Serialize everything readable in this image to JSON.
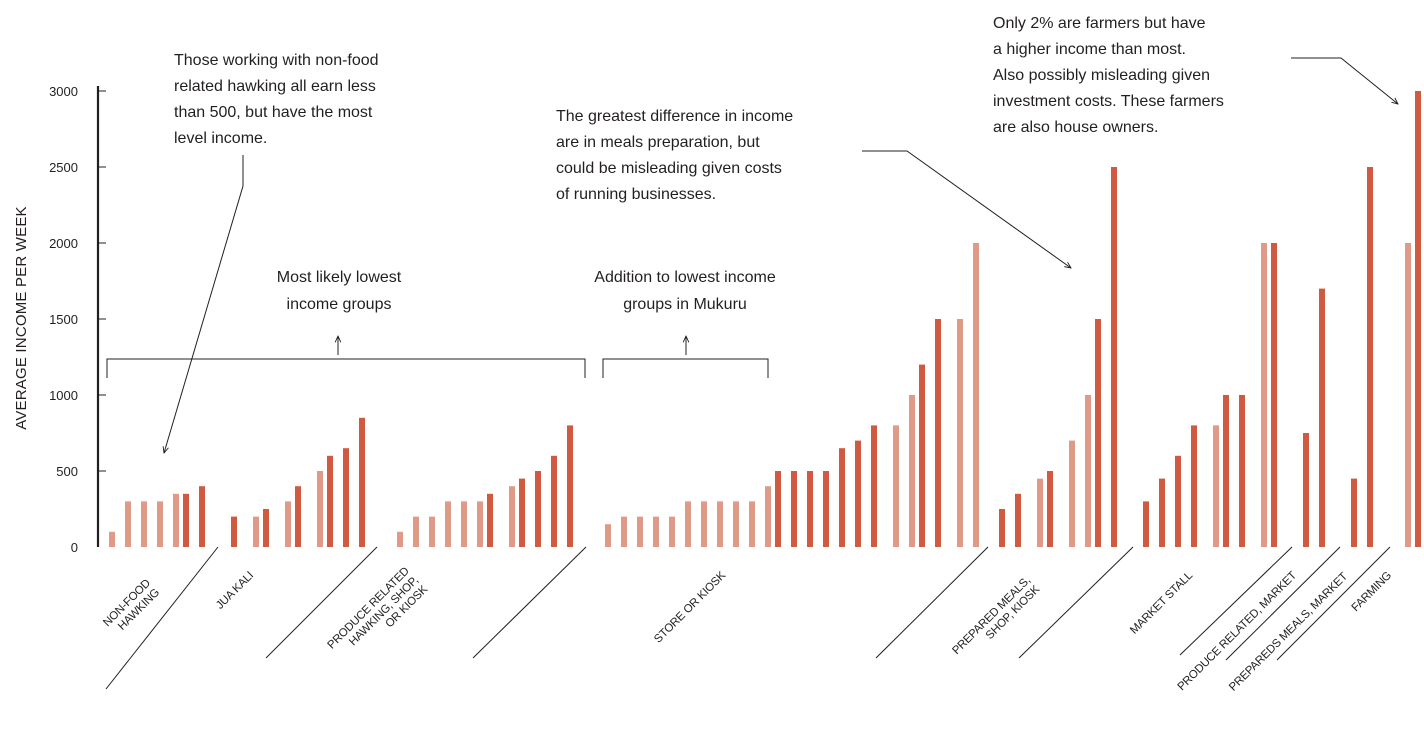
{
  "colors": {
    "light": "#e09a88",
    "dark": "#cf5a40",
    "ink": "#231f20"
  },
  "chart_data": {
    "type": "bar",
    "ylabel": "AVERAGE INCOME PER WEEK",
    "ylim": [
      0,
      3000
    ],
    "yticks": [
      0,
      500,
      1000,
      1500,
      2000,
      2500,
      3000
    ],
    "categories": [
      {
        "name": "NON-FOOD HAWKING",
        "lines": [
          "NON-FOOD",
          "HAWKING"
        ]
      },
      {
        "name": "JUA KALI",
        "lines": [
          "JUA KALI"
        ]
      },
      {
        "name": "PRODUCE RELATED HAWKING, SHOP, OR KIOSK",
        "lines": [
          "PRODUCE RELATED",
          "HAWKING, SHOP,",
          "OR KIOSK"
        ]
      },
      {
        "name": "STORE OR KIOSK",
        "lines": [
          "STORE OR KIOSK"
        ]
      },
      {
        "name": "PREPARED MEALS, SHOP, KIOSK",
        "lines": [
          "PREPARED MEALS,",
          "SHOP, KIOSK"
        ]
      },
      {
        "name": "MARKET STALL",
        "lines": [
          "MARKET STALL"
        ]
      },
      {
        "name": "PRODUCE RELATED, MARKET",
        "lines": [
          "PRODUCE RELATED, MARKET"
        ]
      },
      {
        "name": "PREPAREDS MEALS, MARKET",
        "lines": [
          "PREPAREDS MEALS, MARKET"
        ]
      },
      {
        "name": "FARMING",
        "lines": [
          "FARMING"
        ]
      }
    ],
    "bars": [
      {
        "x": 112,
        "v": 100,
        "t": "l"
      },
      {
        "x": 128,
        "v": 300,
        "t": "l"
      },
      {
        "x": 144,
        "v": 300,
        "t": "l"
      },
      {
        "x": 160,
        "v": 300,
        "t": "l"
      },
      {
        "x": 176,
        "v": 350,
        "t": "l"
      },
      {
        "x": 186,
        "v": 350,
        "t": "d"
      },
      {
        "x": 202,
        "v": 400,
        "t": "d"
      },
      {
        "x": 234,
        "v": 200,
        "t": "d"
      },
      {
        "x": 256,
        "v": 200,
        "t": "l"
      },
      {
        "x": 266,
        "v": 250,
        "t": "d"
      },
      {
        "x": 288,
        "v": 300,
        "t": "l"
      },
      {
        "x": 298,
        "v": 400,
        "t": "d"
      },
      {
        "x": 320,
        "v": 500,
        "t": "l"
      },
      {
        "x": 330,
        "v": 600,
        "t": "d"
      },
      {
        "x": 346,
        "v": 650,
        "t": "d"
      },
      {
        "x": 362,
        "v": 850,
        "t": "d"
      },
      {
        "x": 400,
        "v": 100,
        "t": "l"
      },
      {
        "x": 416,
        "v": 200,
        "t": "l"
      },
      {
        "x": 432,
        "v": 200,
        "t": "l"
      },
      {
        "x": 448,
        "v": 300,
        "t": "l"
      },
      {
        "x": 464,
        "v": 300,
        "t": "l"
      },
      {
        "x": 480,
        "v": 300,
        "t": "l"
      },
      {
        "x": 490,
        "v": 350,
        "t": "d"
      },
      {
        "x": 512,
        "v": 400,
        "t": "l"
      },
      {
        "x": 522,
        "v": 450,
        "t": "d"
      },
      {
        "x": 538,
        "v": 500,
        "t": "d"
      },
      {
        "x": 554,
        "v": 600,
        "t": "d"
      },
      {
        "x": 570,
        "v": 800,
        "t": "d"
      },
      {
        "x": 608,
        "v": 150,
        "t": "l"
      },
      {
        "x": 624,
        "v": 200,
        "t": "l"
      },
      {
        "x": 640,
        "v": 200,
        "t": "l"
      },
      {
        "x": 656,
        "v": 200,
        "t": "l"
      },
      {
        "x": 672,
        "v": 200,
        "t": "l"
      },
      {
        "x": 688,
        "v": 300,
        "t": "l"
      },
      {
        "x": 704,
        "v": 300,
        "t": "l"
      },
      {
        "x": 720,
        "v": 300,
        "t": "l"
      },
      {
        "x": 736,
        "v": 300,
        "t": "l"
      },
      {
        "x": 752,
        "v": 300,
        "t": "l"
      },
      {
        "x": 768,
        "v": 400,
        "t": "l"
      },
      {
        "x": 778,
        "v": 500,
        "t": "d"
      },
      {
        "x": 794,
        "v": 500,
        "t": "d"
      },
      {
        "x": 810,
        "v": 500,
        "t": "d"
      },
      {
        "x": 826,
        "v": 500,
        "t": "d"
      },
      {
        "x": 842,
        "v": 650,
        "t": "d"
      },
      {
        "x": 858,
        "v": 700,
        "t": "d"
      },
      {
        "x": 874,
        "v": 800,
        "t": "d"
      },
      {
        "x": 896,
        "v": 800,
        "t": "l"
      },
      {
        "x": 912,
        "v": 1000,
        "t": "l"
      },
      {
        "x": 922,
        "v": 1200,
        "t": "d"
      },
      {
        "x": 938,
        "v": 1500,
        "t": "d"
      },
      {
        "x": 960,
        "v": 1500,
        "t": "l"
      },
      {
        "x": 976,
        "v": 2000,
        "t": "l"
      },
      {
        "x": 1002,
        "v": 250,
        "t": "d"
      },
      {
        "x": 1018,
        "v": 350,
        "t": "d"
      },
      {
        "x": 1040,
        "v": 450,
        "t": "l"
      },
      {
        "x": 1050,
        "v": 500,
        "t": "d"
      },
      {
        "x": 1072,
        "v": 700,
        "t": "l"
      },
      {
        "x": 1088,
        "v": 1000,
        "t": "l"
      },
      {
        "x": 1098,
        "v": 1500,
        "t": "d"
      },
      {
        "x": 1114,
        "v": 2500,
        "t": "d"
      },
      {
        "x": 1146,
        "v": 300,
        "t": "d"
      },
      {
        "x": 1162,
        "v": 450,
        "t": "d"
      },
      {
        "x": 1178,
        "v": 600,
        "t": "d"
      },
      {
        "x": 1194,
        "v": 800,
        "t": "d"
      },
      {
        "x": 1216,
        "v": 800,
        "t": "l"
      },
      {
        "x": 1226,
        "v": 1000,
        "t": "d"
      },
      {
        "x": 1242,
        "v": 1000,
        "t": "d"
      },
      {
        "x": 1264,
        "v": 2000,
        "t": "l"
      },
      {
        "x": 1274,
        "v": 2000,
        "t": "d"
      },
      {
        "x": 1306,
        "v": 750,
        "t": "d"
      },
      {
        "x": 1322,
        "v": 1700,
        "t": "d"
      },
      {
        "x": 1354,
        "v": 450,
        "t": "d"
      },
      {
        "x": 1370,
        "v": 2500,
        "t": "d"
      },
      {
        "x": 1408,
        "v": 2000,
        "t": "l"
      },
      {
        "x": 1418,
        "v": 3000,
        "t": "d"
      }
    ],
    "brackets": [
      {
        "text_lines": [
          "Most likely lowest",
          "income groups"
        ]
      },
      {
        "text_lines": [
          "Addition to lowest income",
          "groups in Mukuru"
        ]
      }
    ],
    "annotations": [
      {
        "lines": [
          "Those working with non-food",
          "related hawking all earn less",
          "than 500, but have the most",
          "level income."
        ]
      },
      {
        "lines": [
          "The greatest difference in income",
          "are in meals preparation, but",
          "could be misleading given costs",
          "of running businesses."
        ]
      },
      {
        "lines": [
          "Only 2% are farmers but have",
          "a higher income than most.",
          "Also possibly misleading given",
          "investment costs. These farmers",
          "are also house owners."
        ]
      }
    ]
  }
}
